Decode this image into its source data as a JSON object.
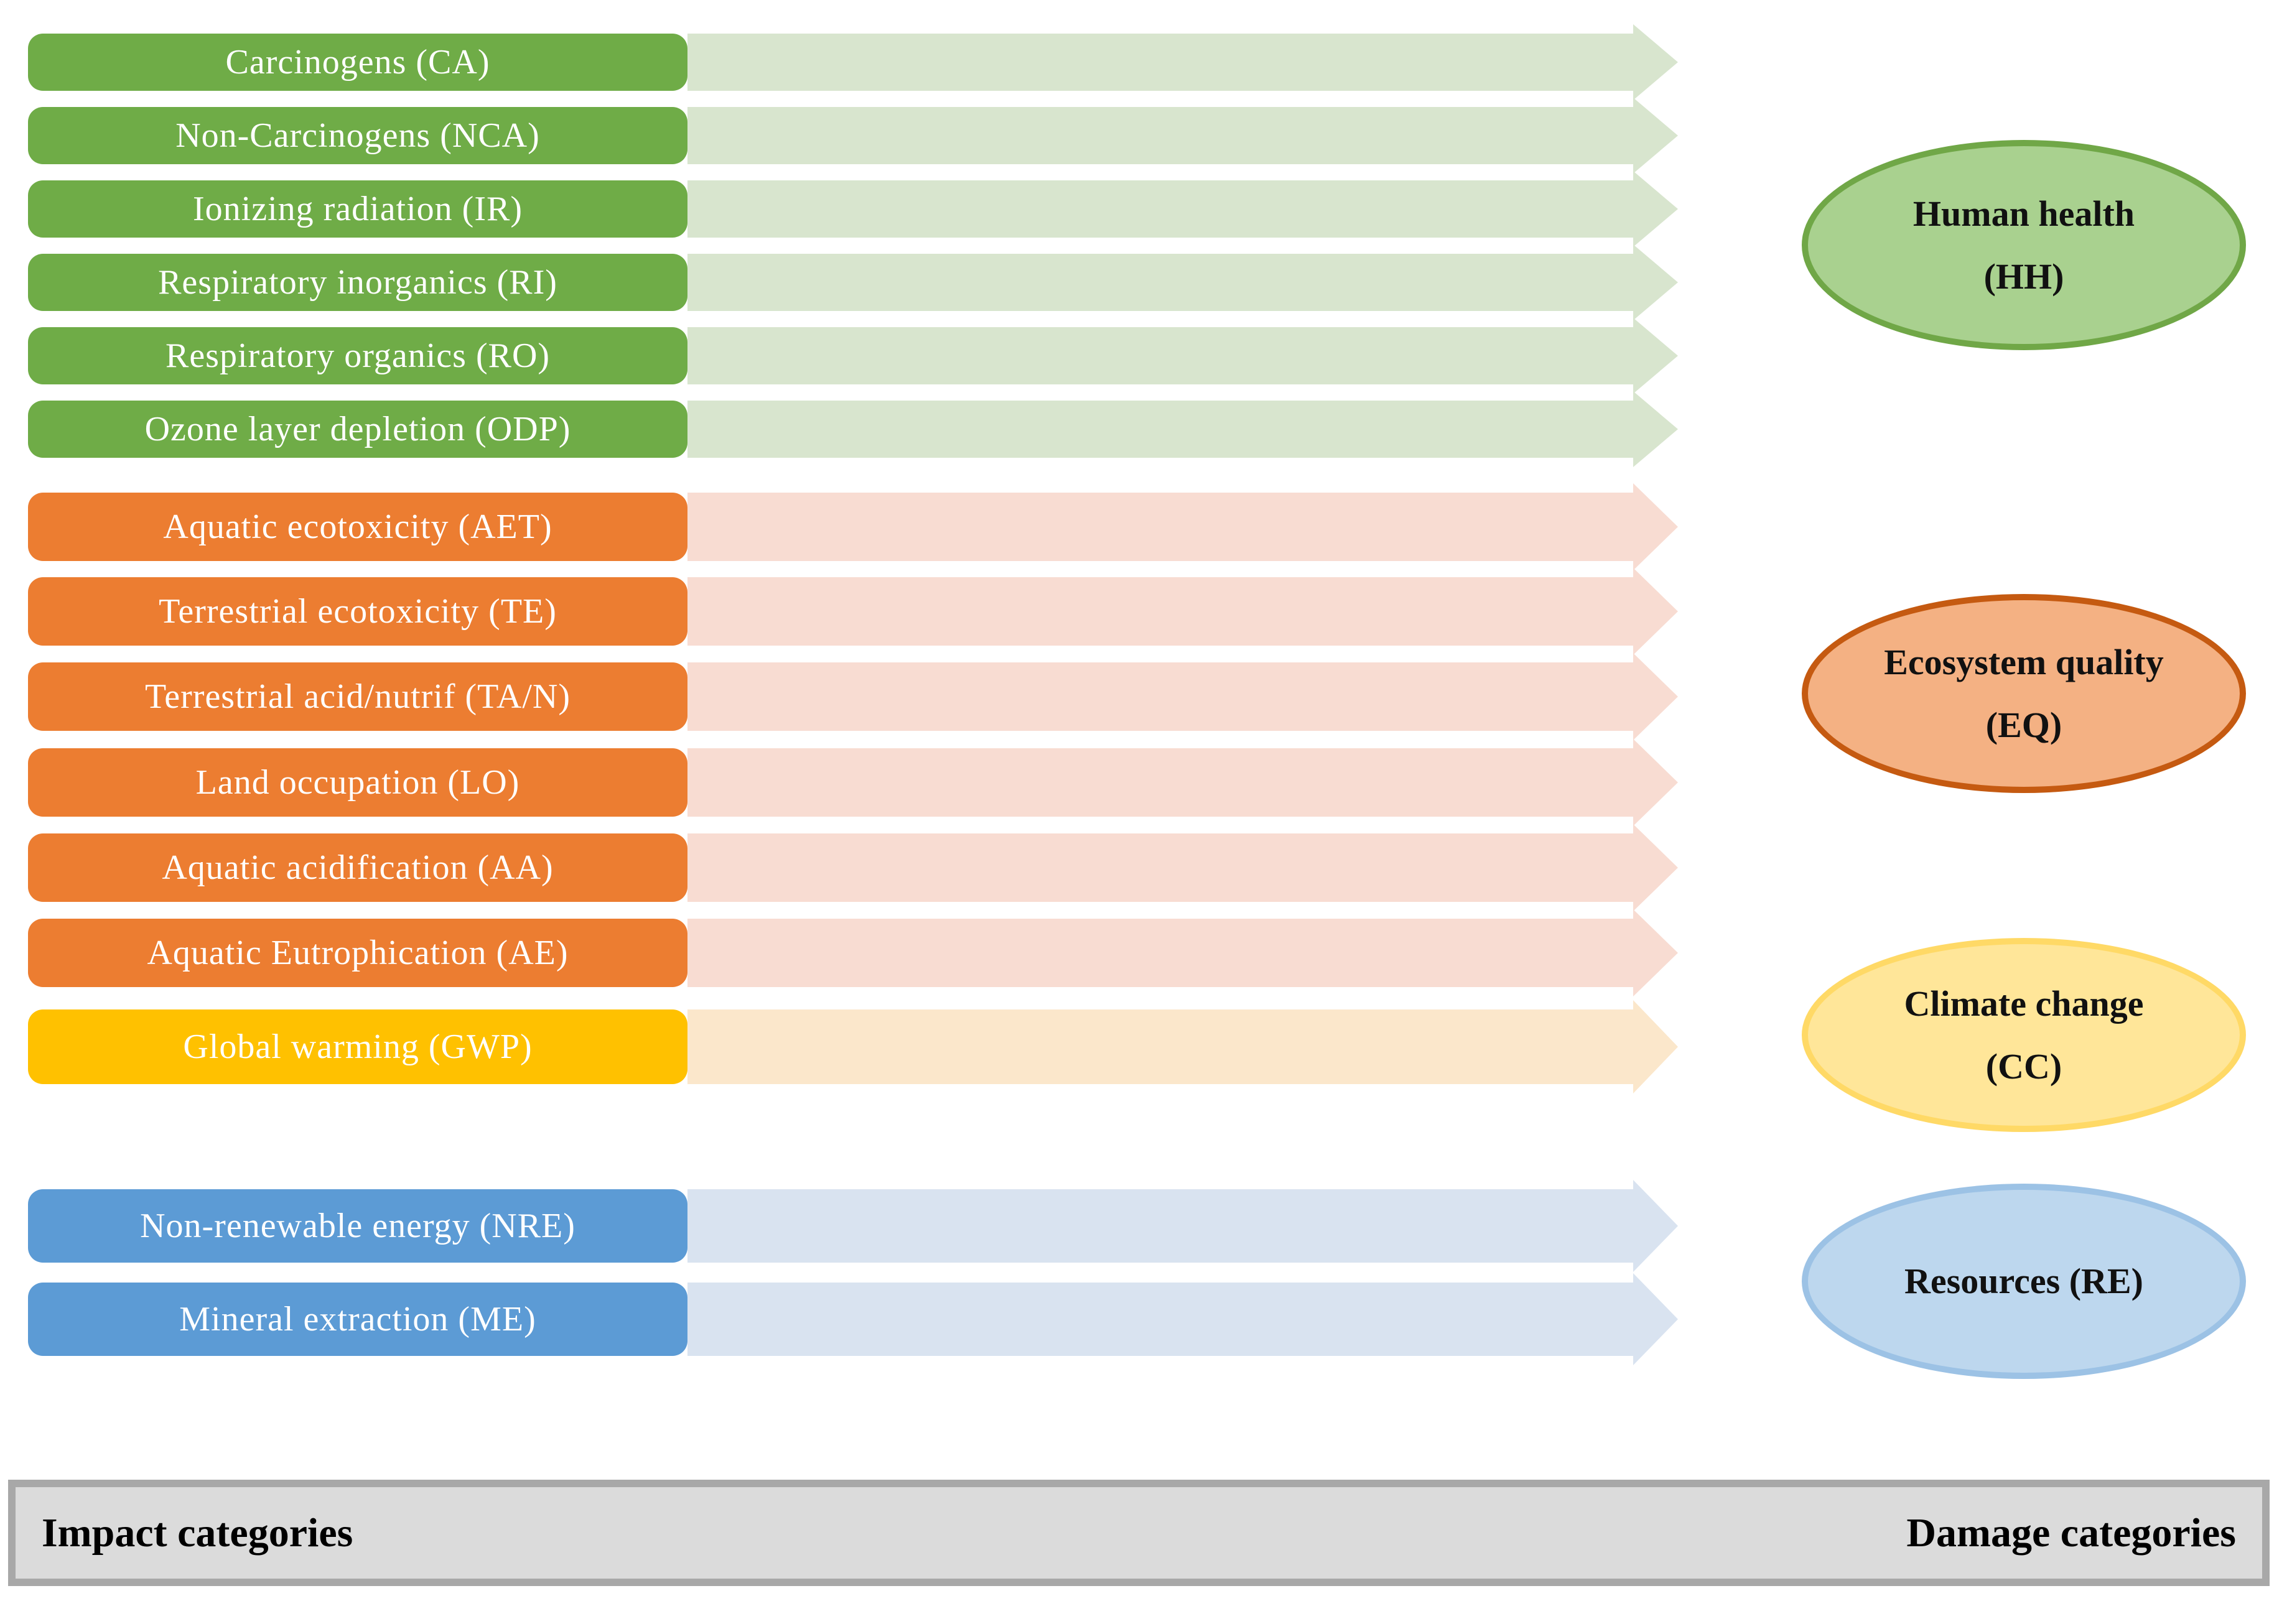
{
  "impact_groups": [
    {
      "name": "human-health-impacts",
      "box_color": "#6FAC47",
      "arrow_color": "#D8E5CE",
      "items": [
        "Carcinogens (CA)",
        "Non-Carcinogens (NCA)",
        "Ionizing radiation (IR)",
        "Respiratory inorganics (RI)",
        "Respiratory organics (RO)",
        "Ozone layer depletion (ODP)"
      ]
    },
    {
      "name": "ecosystem-quality-impacts",
      "box_color": "#EC7D31",
      "arrow_color": "#F8DCD2",
      "items": [
        "Aquatic ecotoxicity (AET)",
        "Terrestrial ecotoxicity (TE)",
        "Terrestrial acid/nutrif (TA/N)",
        "Land occupation (LO)",
        "Aquatic acidification (AA)",
        "Aquatic Eutrophication (AE)"
      ]
    },
    {
      "name": "climate-change-impacts",
      "box_color": "#FFC100",
      "arrow_color": "#FBE7CB",
      "items": [
        "Global warming (GWP)"
      ]
    },
    {
      "name": "resources-impacts",
      "box_color": "#5C9BD5",
      "arrow_color": "#D9E3F0",
      "items": [
        "Non-renewable energy (NRE)",
        "Mineral extraction (ME)"
      ]
    }
  ],
  "damage_categories": [
    {
      "name": "human-health",
      "fill": "#A9D18F",
      "border": "#70A747",
      "lines": [
        "Human health",
        "(HH)"
      ]
    },
    {
      "name": "ecosystem-quality",
      "fill": "#F4B183",
      "border": "#C55A11",
      "lines": [
        "Ecosystem quality",
        "(EQ)"
      ]
    },
    {
      "name": "climate-change",
      "fill": "#FFE699",
      "border": "#FFD966",
      "lines": [
        "Climate change",
        "(CC)"
      ]
    },
    {
      "name": "resources",
      "fill": "#BDD7EE",
      "border": "#9CC2E5",
      "lines": [
        "Resources (RE)"
      ]
    }
  ],
  "footer": {
    "left_label": "Impact categories",
    "right_label": "Damage categories"
  }
}
